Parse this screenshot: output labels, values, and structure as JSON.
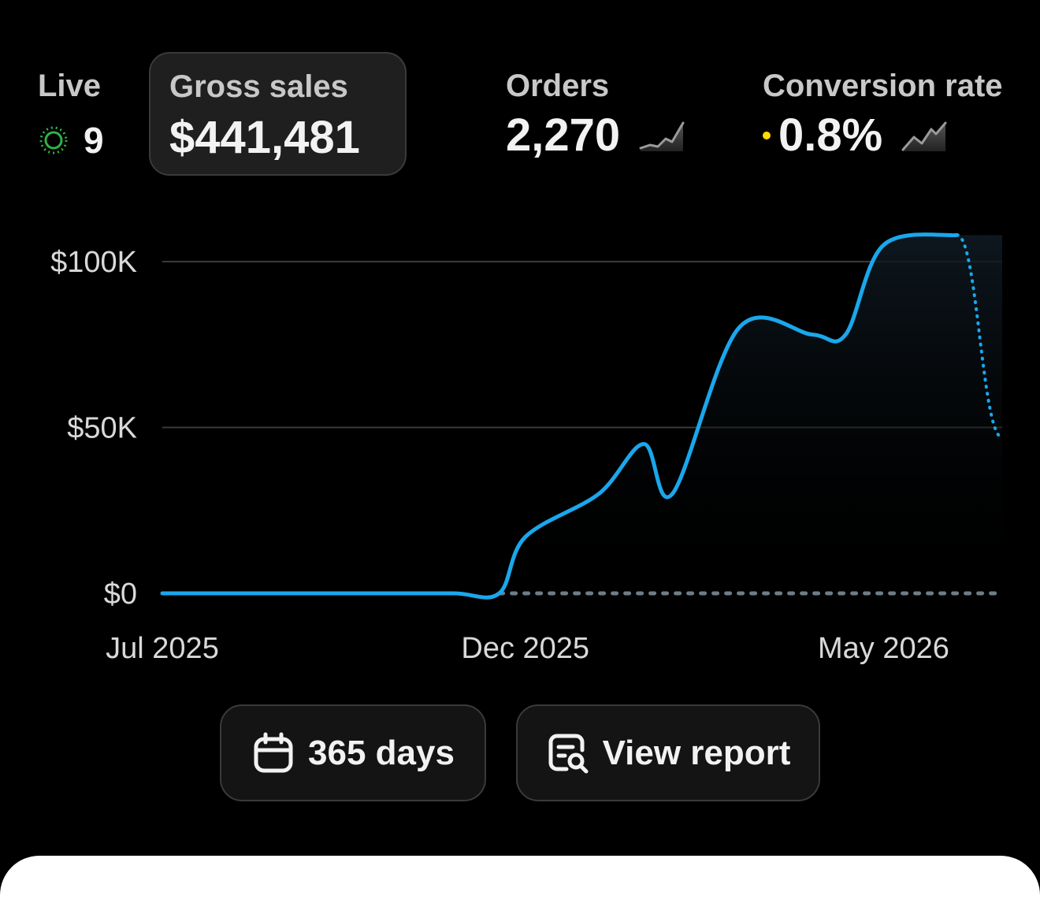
{
  "metrics": {
    "live": {
      "label": "Live",
      "value": "9",
      "icon": "live-pulse-icon",
      "color": "#2fb344"
    },
    "gross_sales": {
      "label": "Gross sales",
      "value": "$441,481"
    },
    "orders": {
      "label": "Orders",
      "value": "2,270",
      "icon": "sparkline-icon"
    },
    "conversion_rate": {
      "label": "Conversion rate",
      "value": "0.8%",
      "icon": "sparkline-icon",
      "dot_color": "#ffdc00"
    }
  },
  "chart_data": {
    "type": "line",
    "x_tick_labels": [
      "Jul 2025",
      "Dec 2025",
      "May 2026"
    ],
    "y_tick_labels": [
      "$100K",
      "$50K",
      "$0"
    ],
    "ylim": [
      0,
      100000
    ],
    "grid": true,
    "series": [
      {
        "style": "solid",
        "color": "#1aa7ec",
        "x": [
          "2025-07-01",
          "2025-08-01",
          "2025-09-01",
          "2025-10-01",
          "2025-11-01",
          "2025-11-20",
          "2025-12-01",
          "2026-01-01",
          "2026-01-20",
          "2026-02-01",
          "2026-03-01",
          "2026-04-01",
          "2026-04-15",
          "2026-05-01",
          "2026-06-01"
        ],
        "y": [
          0,
          0,
          0,
          0,
          0,
          0,
          17000,
          30000,
          45000,
          30000,
          80000,
          78000,
          78000,
          105000,
          108000
        ]
      },
      {
        "style": "dotted",
        "color": "#1aa7ec",
        "x": [
          "2026-06-01",
          "2026-06-20"
        ],
        "y": [
          108000,
          47000
        ]
      },
      {
        "style": "dotted",
        "color": "#6e7d86",
        "x": [
          "2025-11-20",
          "2026-06-20"
        ],
        "y": [
          0,
          0
        ]
      }
    ]
  },
  "buttons": {
    "days": {
      "label": "365 days",
      "icon": "calendar-icon"
    },
    "report": {
      "label": "View report",
      "icon": "report-search-icon"
    }
  }
}
